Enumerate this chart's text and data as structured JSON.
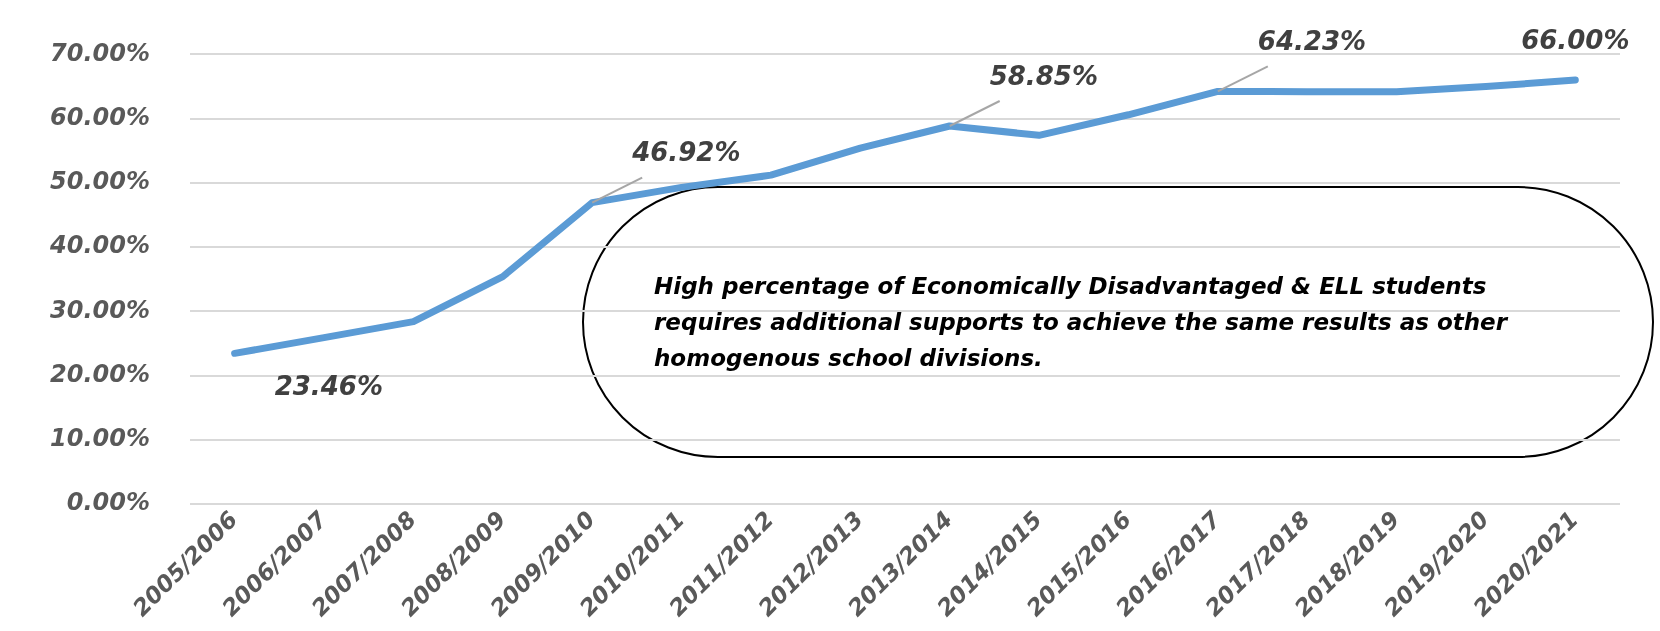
{
  "chart_data": {
    "type": "line",
    "categories": [
      "2005/2006",
      "2006/2007",
      "2007/2008",
      "2008/2009",
      "2009/2010",
      "2010/2011",
      "2011/2012",
      "2012/2013",
      "2013/2014",
      "2014/2015",
      "2015/2016",
      "2016/2017",
      "2017/2018",
      "2018/2019",
      "2019/2020",
      "2020/2021"
    ],
    "series": [
      {
        "color": "#5b9bd5",
        "values": [
          23.46,
          25.9,
          28.4,
          35.4,
          46.92,
          49.3,
          51.2,
          55.4,
          58.85,
          57.4,
          60.6,
          64.23,
          64.2,
          64.2,
          65,
          66
        ],
        "value_labels": [
          "23.46%",
          null,
          null,
          null,
          "46.92%",
          null,
          null,
          null,
          "58.85%",
          null,
          null,
          "64.23%",
          null,
          null,
          null,
          "66.00%"
        ]
      }
    ],
    "ylim": [
      0,
      70
    ],
    "yticks": [
      {
        "value": 0,
        "label": "0.00%"
      },
      {
        "value": 10,
        "label": "10.00%"
      },
      {
        "value": 20,
        "label": "20.00%"
      },
      {
        "value": 30,
        "label": "30.00%"
      },
      {
        "value": 40,
        "label": "40.00%"
      },
      {
        "value": 50,
        "label": "50.00%"
      },
      {
        "value": 60,
        "label": "60.00%"
      },
      {
        "value": 70,
        "label": "70.00%"
      }
    ],
    "grid": "y",
    "legend": false,
    "marker": "none",
    "line_style": "solid",
    "annotations": [
      "High percentage of Economically Disadvantaged & ELL students requires additional supports to achieve the same  results as other homogenous school divisions."
    ]
  }
}
